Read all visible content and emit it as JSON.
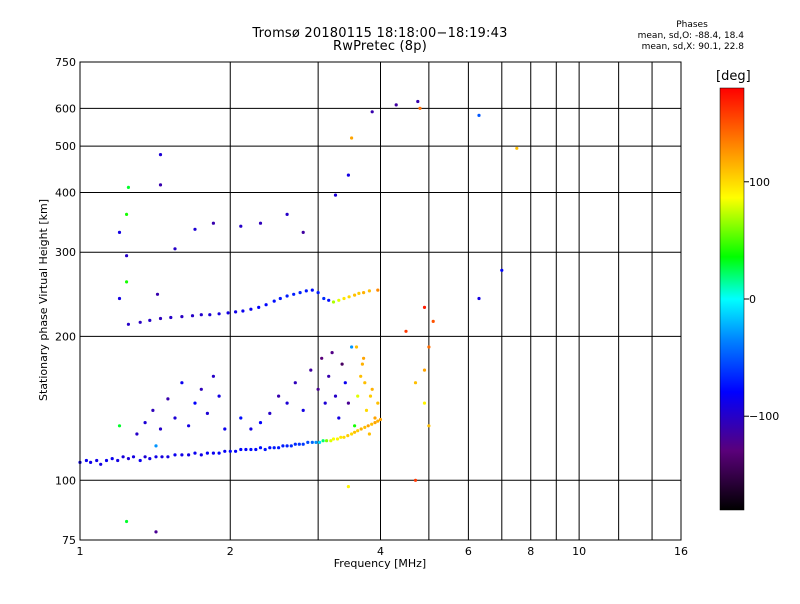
{
  "title": "Tromsø 20180115  18:18:00−18:19:43",
  "subtitle": "RwPretec (8p)",
  "stats": {
    "heading": "Phases",
    "line1": "mean, sd,O:  -88.4,  18.4",
    "line2": "mean, sd,X:   90.1,  22.8"
  },
  "colorbar": {
    "unit": "[deg]",
    "range": [
      -180,
      180
    ],
    "ticks": [
      {
        "value": 100,
        "label": "100"
      },
      {
        "value": 0,
        "label": "0"
      },
      {
        "value": -100,
        "label": "−100"
      }
    ]
  },
  "chart_data": {
    "type": "scatter",
    "xlabel": "Frequency [MHz]",
    "ylabel": "Stationary phase Virtual Height [km]",
    "xscale": "log",
    "yscale": "log",
    "xlim": [
      1,
      16
    ],
    "ylim": [
      75,
      750
    ],
    "grid": true,
    "x_ticks": [
      {
        "value": 1,
        "label": "1"
      },
      {
        "value": 2,
        "label": "2"
      },
      {
        "value": 4,
        "label": "4"
      },
      {
        "value": 6,
        "label": "6"
      },
      {
        "value": 8,
        "label": "8"
      },
      {
        "value": 10,
        "label": "10"
      },
      {
        "value": 16,
        "label": "16"
      }
    ],
    "y_ticks": [
      {
        "value": 75,
        "label": "75"
      },
      {
        "value": 100,
        "label": "100"
      },
      {
        "value": 200,
        "label": "200"
      },
      {
        "value": 300,
        "label": "300"
      },
      {
        "value": 400,
        "label": "400"
      },
      {
        "value": 500,
        "label": "500"
      },
      {
        "value": 600,
        "label": "600"
      },
      {
        "value": 750,
        "label": "750"
      }
    ],
    "colormap": "rainbow (phase in degrees)",
    "points": [
      [
        1.0,
        109,
        -85
      ],
      [
        1.03,
        110,
        -85
      ],
      [
        1.05,
        109,
        -88
      ],
      [
        1.08,
        110,
        -88
      ],
      [
        1.1,
        108,
        -90
      ],
      [
        1.13,
        110,
        -85
      ],
      [
        1.16,
        111,
        -85
      ],
      [
        1.19,
        110,
        -90
      ],
      [
        1.22,
        112,
        -92
      ],
      [
        1.25,
        111,
        -95
      ],
      [
        1.28,
        112,
        -90
      ],
      [
        1.32,
        110,
        -85
      ],
      [
        1.35,
        112,
        -95
      ],
      [
        1.38,
        111,
        -90
      ],
      [
        1.42,
        112,
        -88
      ],
      [
        1.46,
        112,
        -92
      ],
      [
        1.5,
        112,
        -90
      ],
      [
        1.55,
        113,
        -85
      ],
      [
        1.6,
        113,
        -88
      ],
      [
        1.65,
        113,
        -90
      ],
      [
        1.7,
        114,
        -85
      ],
      [
        1.75,
        113,
        -88
      ],
      [
        1.8,
        114,
        -82
      ],
      [
        1.85,
        114,
        -85
      ],
      [
        1.9,
        114,
        -80
      ],
      [
        1.95,
        115,
        -82
      ],
      [
        2.0,
        115,
        -78
      ],
      [
        2.05,
        115,
        -80
      ],
      [
        2.1,
        116,
        -78
      ],
      [
        2.15,
        116,
        -80
      ],
      [
        2.2,
        116,
        -75
      ],
      [
        2.25,
        116,
        -78
      ],
      [
        2.3,
        117,
        -75
      ],
      [
        2.35,
        116,
        -72
      ],
      [
        2.4,
        117,
        -75
      ],
      [
        2.45,
        117,
        -70
      ],
      [
        2.5,
        117,
        -72
      ],
      [
        2.55,
        118,
        -70
      ],
      [
        2.6,
        118,
        -68
      ],
      [
        2.65,
        118,
        -65
      ],
      [
        2.7,
        119,
        -65
      ],
      [
        2.75,
        119,
        -62
      ],
      [
        2.8,
        119,
        -60
      ],
      [
        2.86,
        120,
        -55
      ],
      [
        2.92,
        120,
        -45
      ],
      [
        2.97,
        120,
        -30
      ],
      [
        3.02,
        120,
        -10
      ],
      [
        3.07,
        121,
        20
      ],
      [
        3.12,
        121,
        60
      ],
      [
        3.18,
        121,
        80
      ],
      [
        3.22,
        122,
        85
      ],
      [
        3.28,
        122,
        90
      ],
      [
        3.33,
        123,
        95
      ],
      [
        3.38,
        123,
        100
      ],
      [
        3.44,
        124,
        105
      ],
      [
        3.5,
        125,
        100
      ],
      [
        3.55,
        126,
        110
      ],
      [
        3.6,
        127,
        105
      ],
      [
        3.66,
        128,
        115
      ],
      [
        3.72,
        129,
        110
      ],
      [
        3.78,
        130,
        120
      ],
      [
        3.84,
        131,
        110
      ],
      [
        3.9,
        132,
        120
      ],
      [
        3.95,
        133,
        115
      ],
      [
        4.0,
        134,
        120
      ],
      [
        1.25,
        212,
        -100
      ],
      [
        1.32,
        214,
        -102
      ],
      [
        1.38,
        216,
        -100
      ],
      [
        1.45,
        218,
        -105
      ],
      [
        1.52,
        219,
        -100
      ],
      [
        1.6,
        220,
        -102
      ],
      [
        1.68,
        221,
        -100
      ],
      [
        1.75,
        222,
        -98
      ],
      [
        1.82,
        222,
        -95
      ],
      [
        1.9,
        223,
        -92
      ],
      [
        1.98,
        224,
        -90
      ],
      [
        2.05,
        225,
        -88
      ],
      [
        2.12,
        226,
        -85
      ],
      [
        2.2,
        228,
        -85
      ],
      [
        2.28,
        230,
        -80
      ],
      [
        2.36,
        233,
        -78
      ],
      [
        2.45,
        237,
        -75
      ],
      [
        2.52,
        240,
        -72
      ],
      [
        2.6,
        243,
        -70
      ],
      [
        2.68,
        245,
        -70
      ],
      [
        2.76,
        247,
        -68
      ],
      [
        2.84,
        249,
        -72
      ],
      [
        2.92,
        250,
        -75
      ],
      [
        3.0,
        247,
        -70
      ],
      [
        3.08,
        240,
        -65
      ],
      [
        3.15,
        238,
        -75
      ],
      [
        3.22,
        236,
        70
      ],
      [
        3.3,
        238,
        80
      ],
      [
        3.38,
        240,
        95
      ],
      [
        3.46,
        242,
        100
      ],
      [
        3.55,
        244,
        110
      ],
      [
        3.62,
        246,
        105
      ],
      [
        3.7,
        247,
        115
      ],
      [
        3.8,
        249,
        110
      ],
      [
        1.3,
        125,
        -100
      ],
      [
        1.35,
        132,
        -95
      ],
      [
        1.4,
        140,
        -105
      ],
      [
        1.45,
        128,
        -100
      ],
      [
        1.5,
        148,
        -110
      ],
      [
        1.55,
        135,
        -95
      ],
      [
        1.6,
        160,
        -85
      ],
      [
        1.65,
        130,
        -90
      ],
      [
        1.7,
        145,
        -80
      ],
      [
        1.75,
        155,
        -105
      ],
      [
        1.8,
        138,
        -95
      ],
      [
        1.85,
        165,
        -100
      ],
      [
        1.9,
        150,
        -90
      ],
      [
        1.95,
        128,
        -85
      ],
      [
        2.1,
        135,
        -75
      ],
      [
        2.2,
        128,
        -90
      ],
      [
        2.3,
        132,
        -80
      ],
      [
        2.4,
        138,
        -100
      ],
      [
        2.5,
        150,
        -110
      ],
      [
        2.6,
        145,
        -95
      ],
      [
        2.7,
        160,
        -105
      ],
      [
        2.8,
        140,
        -90
      ],
      [
        2.9,
        170,
        -115
      ],
      [
        3.0,
        155,
        -120
      ],
      [
        3.05,
        180,
        -130
      ],
      [
        3.1,
        145,
        -95
      ],
      [
        3.15,
        165,
        -110
      ],
      [
        3.2,
        185,
        -125
      ],
      [
        3.25,
        150,
        -100
      ],
      [
        3.3,
        135,
        -90
      ],
      [
        3.35,
        175,
        -140
      ],
      [
        3.4,
        160,
        -85
      ],
      [
        3.45,
        145,
        -120
      ],
      [
        3.5,
        190,
        -30
      ],
      [
        3.55,
        130,
        40
      ],
      [
        3.6,
        150,
        80
      ],
      [
        3.65,
        165,
        110
      ],
      [
        3.7,
        180,
        120
      ],
      [
        3.75,
        140,
        100
      ],
      [
        3.8,
        125,
        110
      ],
      [
        3.85,
        155,
        115
      ],
      [
        3.9,
        135,
        120
      ],
      [
        3.95,
        145,
        110
      ],
      [
        3.58,
        190,
        110
      ],
      [
        3.68,
        175,
        115
      ],
      [
        3.72,
        160,
        110
      ],
      [
        3.82,
        150,
        105
      ],
      [
        1.2,
        330,
        -90
      ],
      [
        1.45,
        480,
        -95
      ],
      [
        1.45,
        415,
        -110
      ],
      [
        1.55,
        305,
        -100
      ],
      [
        1.7,
        335,
        -95
      ],
      [
        1.85,
        345,
        -110
      ],
      [
        2.1,
        340,
        -100
      ],
      [
        2.3,
        345,
        -105
      ],
      [
        2.6,
        360,
        -100
      ],
      [
        2.8,
        330,
        -115
      ],
      [
        3.25,
        395,
        -95
      ],
      [
        3.45,
        435,
        -90
      ],
      [
        3.85,
        590,
        -110
      ],
      [
        4.3,
        610,
        -115
      ],
      [
        4.75,
        620,
        -110
      ],
      [
        6.3,
        580,
        -50
      ],
      [
        7.0,
        275,
        -80
      ],
      [
        6.3,
        240,
        -90
      ],
      [
        7.5,
        495,
        110
      ],
      [
        4.8,
        600,
        140
      ],
      [
        3.5,
        520,
        120
      ],
      [
        3.95,
        250,
        130
      ],
      [
        4.5,
        205,
        160
      ],
      [
        4.9,
        230,
        170
      ],
      [
        5.1,
        215,
        150
      ],
      [
        5.0,
        190,
        140
      ],
      [
        4.9,
        170,
        120
      ],
      [
        4.7,
        160,
        110
      ],
      [
        4.9,
        145,
        90
      ],
      [
        5.0,
        130,
        110
      ],
      [
        4.7,
        100,
        160
      ],
      [
        3.45,
        97,
        90
      ],
      [
        1.24,
        82,
        30
      ],
      [
        1.42,
        78,
        -120
      ],
      [
        1.25,
        410,
        30
      ],
      [
        1.24,
        360,
        40
      ],
      [
        1.24,
        295,
        -100
      ],
      [
        1.24,
        260,
        40
      ],
      [
        1.2,
        240,
        -90
      ],
      [
        1.2,
        130,
        30
      ],
      [
        1.42,
        118,
        -30
      ],
      [
        1.43,
        245,
        -110
      ]
    ]
  }
}
